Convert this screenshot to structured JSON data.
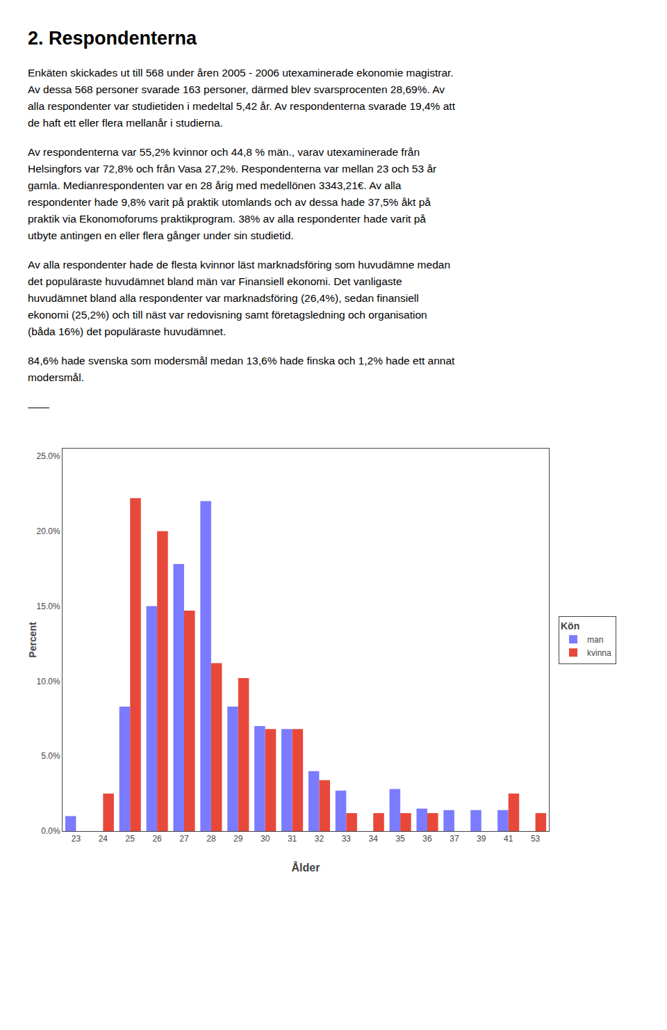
{
  "chart_data": {
    "type": "bar",
    "title": "2. Respondenterna",
    "annotations": [
      "Enkäten skickades ut till 568 under åren 2005 - 2006 utexaminerade ekonomie magistrar.\nAv dessa 568 personer svarade 163 personer, därmed blev svarsprocenten 28,69%. Av\nalla respondenter var studietiden i medeltal 5,42 år. Av respondenterna svarade 19,4% att\nde haft ett eller flera mellanår i studierna.",
      "Av respondenterna var 55,2% kvinnor och 44,8 % män., varav utexaminerade från\nHelsingfors var 72,8% och från Vasa  27,2%. Respondenterna var mellan 23 och 53 år\ngamla. Medianrespondenten var en 28 årig med medellönen 3343,21€. Av alla\nrespondenter hade 9,8% varit på praktik utomlands och av dessa hade 37,5% åkt på\npraktik via Ekonomoforums praktikprogram. 38% av alla respondenter hade varit på\nutbyte antingen en eller flera gånger under sin studietid.",
      "Av alla respondenter hade de flesta kvinnor läst marknadsföring som huvudämne medan\ndet populäraste huvudämnet bland män var Finansiell ekonomi. Det vanligaste\nhuvudämnet bland alla respondenter var marknadsföring (26,4%), sedan finansiell\nekonomi (25,2%) och till näst var redovisning samt företagsledning och organisation\n(båda 16%) det populäraste huvudämnet.",
      "84,6% hade svenska som modersmål medan 13,6% hade finska och 1,2% hade ett annat\nmodersmål.",
      "——"
    ],
    "categories": [
      "23",
      "24",
      "25",
      "26",
      "27",
      "28",
      "29",
      "30",
      "31",
      "32",
      "33",
      "34",
      "35",
      "36",
      "37",
      "39",
      "41",
      "53"
    ],
    "series": [
      {
        "name": "man",
        "color": "#7b7bff",
        "values": [
          1.0,
          0.0,
          8.3,
          15.0,
          17.8,
          22.0,
          8.3,
          7.0,
          6.8,
          4.0,
          2.7,
          0.0,
          2.8,
          1.5,
          1.4,
          1.4,
          1.4,
          0.0
        ]
      },
      {
        "name": "kvinna",
        "color": "#e8483a",
        "values": [
          0.0,
          2.5,
          22.2,
          20.0,
          14.7,
          11.2,
          10.2,
          6.8,
          6.8,
          3.4,
          1.2,
          1.2,
          1.2,
          1.2,
          0.0,
          0.0,
          2.5,
          1.2
        ]
      }
    ],
    "xlabel": "Ålder",
    "ylabel": "Percent",
    "legend_title": "Kön",
    "legend": "right",
    "ylim": [
      0,
      25.5
    ],
    "yticks": [
      {
        "value": 0.0,
        "label": "0.0%"
      },
      {
        "value": 5.0,
        "label": "5.0%"
      },
      {
        "value": 10.0,
        "label": "10.0%"
      },
      {
        "value": 15.0,
        "label": "15.0%"
      },
      {
        "value": 20.0,
        "label": "20.0%"
      },
      {
        "value": 25.0,
        "label": "25.0%"
      }
    ],
    "grid": false
  }
}
